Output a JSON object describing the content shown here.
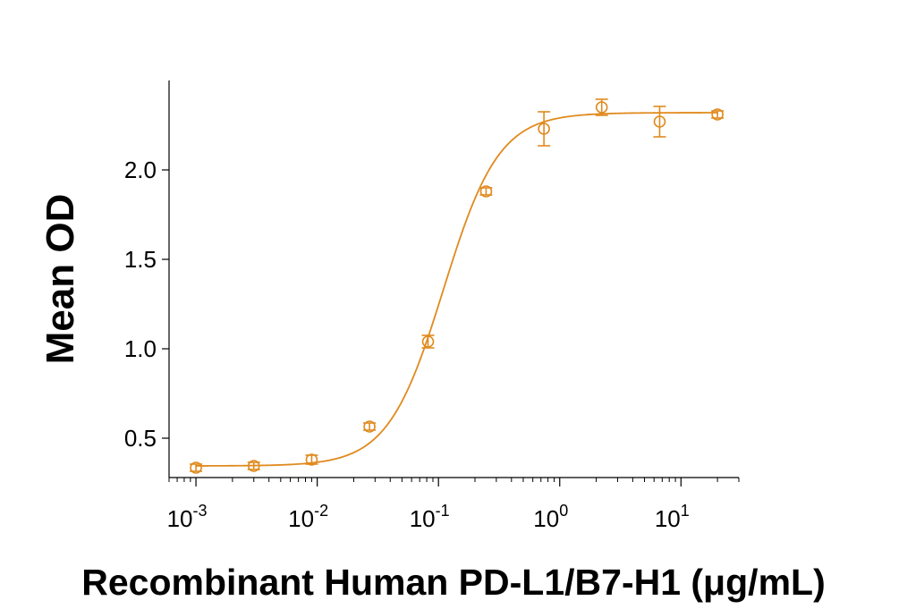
{
  "chart_data": {
    "type": "scatter",
    "xlabel": "Recombinant Human PD-L1/B7-H1 (μg/mL)",
    "ylabel": "Mean OD",
    "x_scale": "log",
    "xlim": [
      0.0006,
      30
    ],
    "ylim": [
      0.28,
      2.5
    ],
    "y_ticks": [
      0.5,
      1.0,
      1.5,
      2.0
    ],
    "y_tick_labels": [
      "0.5",
      "1.0",
      "1.5",
      "2.0"
    ],
    "x_ticks": [
      0.001,
      0.01,
      0.1,
      1,
      10
    ],
    "x_tick_labels": [
      {
        "base": "10",
        "exp": "-3"
      },
      {
        "base": "10",
        "exp": "-2"
      },
      {
        "base": "10",
        "exp": "-1"
      },
      {
        "base": "10",
        "exp": "0"
      },
      {
        "base": "10",
        "exp": "1"
      }
    ],
    "grid": false,
    "color": "#E08A1E",
    "series": [
      {
        "x": [
          0.001,
          0.003,
          0.009,
          0.027,
          0.082,
          0.247,
          0.741,
          2.22,
          6.67,
          20
        ],
        "y": [
          0.335,
          0.345,
          0.38,
          0.565,
          1.04,
          1.88,
          2.23,
          2.35,
          2.27,
          2.31
        ],
        "error": [
          0.02,
          0.02,
          0.025,
          0.02,
          0.035,
          0.02,
          0.095,
          0.045,
          0.085,
          0.02
        ]
      }
    ],
    "fit_curve": {
      "model": "4PL",
      "bottom": 0.345,
      "top": 2.32,
      "ec50": 0.11,
      "hill": 1.9
    }
  }
}
